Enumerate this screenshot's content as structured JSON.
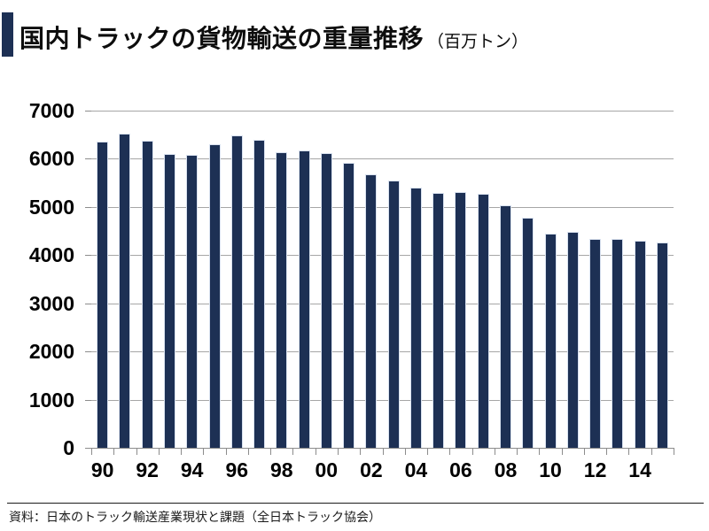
{
  "header": {
    "title": "国内トラックの貨物輸送の重量推移",
    "unit_label": "（百万トン）"
  },
  "footer": {
    "source": "資料：日本のトラック輸送産業現状と課題（全日本トラック協会）"
  },
  "colors": {
    "bar": "#1d3054",
    "accent_square": "#1d3054",
    "gridline": "#a6a6a6",
    "axis": "#8c8c8c"
  },
  "chart_data": {
    "type": "bar",
    "title": "国内トラックの貨物輸送の重量推移",
    "unit": "百万トン",
    "categories": [
      "90",
      "91",
      "92",
      "93",
      "94",
      "95",
      "96",
      "97",
      "98",
      "99",
      "00",
      "01",
      "02",
      "03",
      "04",
      "05",
      "06",
      "07",
      "08",
      "09",
      "10",
      "11",
      "12",
      "13",
      "14",
      "15"
    ],
    "values": [
      6360,
      6530,
      6370,
      6100,
      6080,
      6310,
      6490,
      6390,
      6130,
      6180,
      6110,
      5910,
      5670,
      5550,
      5410,
      5290,
      5310,
      5270,
      5040,
      4770,
      4450,
      4480,
      4340,
      4330,
      4300,
      4270
    ],
    "x_tick_labels": [
      "90",
      "92",
      "94",
      "96",
      "98",
      "00",
      "02",
      "04",
      "06",
      "08",
      "10",
      "12",
      "14"
    ],
    "label_every": 2,
    "ylim": [
      0,
      7000
    ],
    "y_ticks": [
      0,
      1000,
      2000,
      3000,
      4000,
      5000,
      6000,
      7000
    ],
    "grid": true,
    "legend": "none",
    "bar_color": "#1d3054"
  }
}
